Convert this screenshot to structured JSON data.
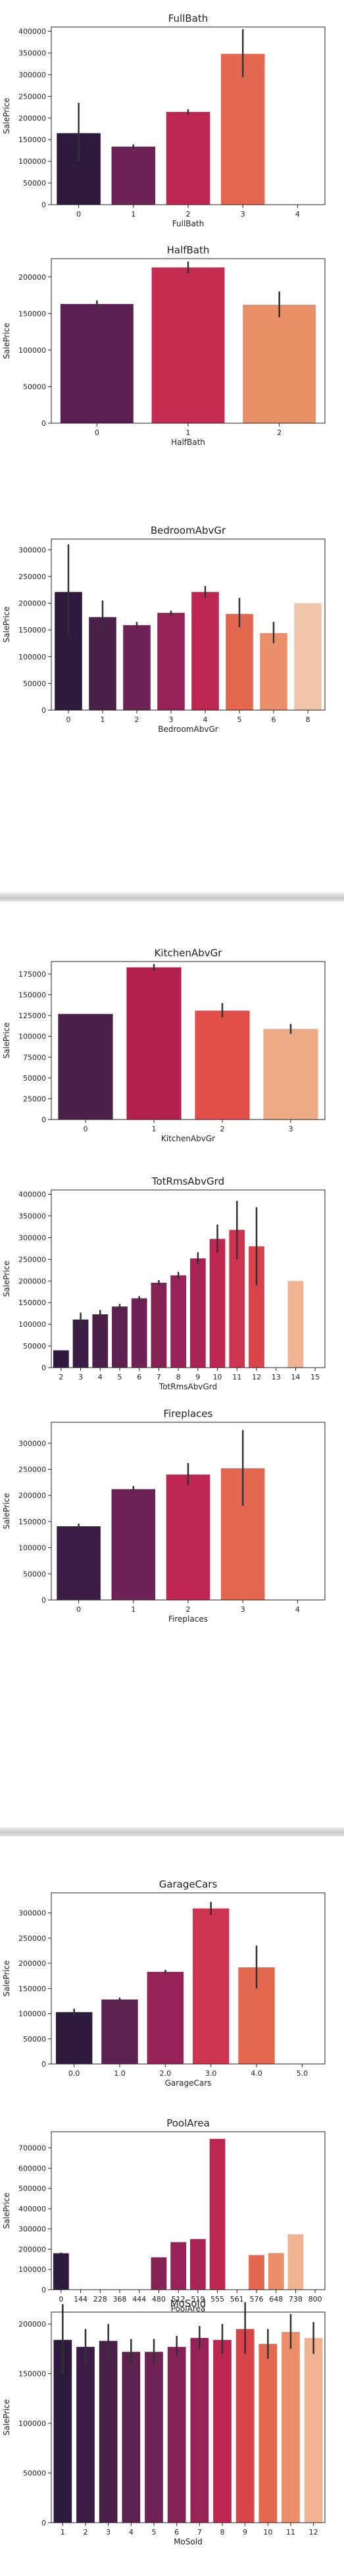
{
  "palette": [
    "#2d1a3d",
    "#4a1f48",
    "#6e2256",
    "#962257",
    "#bd2650",
    "#d9434a",
    "#e4684f",
    "#ea8f6a",
    "#efb392",
    "#f0c6ab"
  ],
  "errorbar_color": "#333333",
  "chart_data": [
    {
      "type": "bar",
      "title": "FullBath",
      "xlabel": "FullBath",
      "ylabel": "SalePrice",
      "categories": [
        "0",
        "1",
        "2",
        "3",
        "4"
      ],
      "values": [
        165000,
        134000,
        214000,
        348000,
        0
      ],
      "ci": [
        [
          100000,
          235000
        ],
        [
          129000,
          139000
        ],
        [
          208000,
          220000
        ],
        [
          294000,
          405000
        ],
        null
      ],
      "ylim": [
        0,
        410000
      ],
      "yticks": [
        0,
        50000,
        100000,
        150000,
        200000,
        250000,
        300000,
        350000,
        400000
      ],
      "colors": [
        "#2d1a3d",
        "#6e2256",
        "#bd2650",
        "#e4684f",
        "#efb392"
      ]
    },
    {
      "type": "bar",
      "title": "HalfBath",
      "xlabel": "HalfBath",
      "ylabel": "SalePrice",
      "categories": [
        "0",
        "1",
        "2"
      ],
      "values": [
        163000,
        213000,
        162000
      ],
      "ci": [
        [
          158000,
          168000
        ],
        [
          205000,
          221000
        ],
        [
          145000,
          180000
        ]
      ],
      "ylim": [
        0,
        225000
      ],
      "yticks": [
        0,
        50000,
        100000,
        150000,
        200000
      ],
      "colors": [
        "#5a1f52",
        "#c62b52",
        "#e89068"
      ]
    },
    {
      "type": "bar",
      "title": "BedroomAbvGr",
      "xlabel": "BedroomAbvGr",
      "ylabel": "SalePrice",
      "categories": [
        "0",
        "1",
        "2",
        "3",
        "4",
        "5",
        "6",
        "8"
      ],
      "values": [
        221000,
        174000,
        159000,
        182000,
        221000,
        180000,
        144000,
        200000
      ],
      "ci": [
        [
          140000,
          310000
        ],
        [
          145000,
          205000
        ],
        [
          153000,
          165000
        ],
        [
          177000,
          186000
        ],
        [
          210000,
          232000
        ],
        [
          155000,
          210000
        ],
        [
          125000,
          165000
        ],
        null
      ],
      "ylim": [
        0,
        320000
      ],
      "yticks": [
        0,
        50000,
        100000,
        150000,
        200000,
        250000,
        300000
      ],
      "colors": [
        "#2d1a3d",
        "#4a1f48",
        "#6e2256",
        "#962257",
        "#bd2650",
        "#e4684f",
        "#ea8f6a",
        "#f0c6ab"
      ]
    },
    {
      "type": "bar",
      "title": "KitchenAbvGr",
      "xlabel": "KitchenAbvGr",
      "ylabel": "SalePrice",
      "categories": [
        "0",
        "1",
        "2",
        "3"
      ],
      "values": [
        127000,
        183000,
        131000,
        109000
      ],
      "ci": [
        null,
        [
          179000,
          187000
        ],
        [
          123000,
          140000
        ],
        [
          103000,
          115000
        ]
      ],
      "ylim": [
        0,
        190000
      ],
      "yticks": [
        0,
        25000,
        50000,
        75000,
        100000,
        125000,
        150000,
        175000
      ],
      "colors": [
        "#4a1f48",
        "#b3204e",
        "#e24e49",
        "#ecaa86"
      ]
    },
    {
      "type": "bar",
      "title": "TotRmsAbvGrd",
      "xlabel": "TotRmsAbvGrd",
      "ylabel": "SalePrice",
      "categories": [
        "2",
        "3",
        "4",
        "5",
        "6",
        "7",
        "8",
        "9",
        "10",
        "11",
        "12",
        "13",
        "14",
        "15"
      ],
      "values": [
        40000,
        111000,
        123000,
        141000,
        160000,
        196000,
        213000,
        252000,
        297000,
        318000,
        280000,
        0,
        200000,
        0
      ],
      "ci": [
        null,
        [
          95000,
          127000
        ],
        [
          113000,
          133000
        ],
        [
          135000,
          147000
        ],
        [
          155000,
          165000
        ],
        [
          190000,
          202000
        ],
        [
          205000,
          221000
        ],
        [
          238000,
          266000
        ],
        [
          265000,
          330000
        ],
        [
          250000,
          385000
        ],
        [
          190000,
          370000
        ],
        null,
        null,
        null
      ],
      "ylim": [
        0,
        410000
      ],
      "yticks": [
        0,
        50000,
        100000,
        150000,
        200000,
        250000,
        300000,
        350000,
        400000
      ],
      "colors": [
        "#2d1a3d",
        "#3a1c44",
        "#4a1f48",
        "#5d2150",
        "#6e2256",
        "#852255",
        "#962257",
        "#a92354",
        "#bd2650",
        "#cd3450",
        "#d9434a",
        "#e4684f",
        "#efb392",
        "#f0c6ab"
      ]
    },
    {
      "type": "bar",
      "title": "Fireplaces",
      "xlabel": "Fireplaces",
      "ylabel": "SalePrice",
      "categories": [
        "0",
        "1",
        "2",
        "3",
        "4"
      ],
      "values": [
        141000,
        212000,
        240000,
        252000,
        0
      ],
      "ci": [
        [
          136000,
          146000
        ],
        [
          206000,
          218000
        ],
        [
          220000,
          262000
        ],
        [
          180000,
          325000
        ],
        null
      ],
      "ylim": [
        0,
        340000
      ],
      "yticks": [
        0,
        50000,
        100000,
        150000,
        200000,
        250000,
        300000
      ],
      "colors": [
        "#3a1c44",
        "#6e2256",
        "#bd2650",
        "#e4684f",
        "#efb392"
      ]
    },
    {
      "type": "bar",
      "title": "GarageCars",
      "xlabel": "GarageCars",
      "ylabel": "SalePrice",
      "categories": [
        "0.0",
        "1.0",
        "2.0",
        "3.0",
        "4.0",
        "5.0"
      ],
      "values": [
        103000,
        128000,
        183000,
        309000,
        192000,
        0
      ],
      "ci": [
        [
          96000,
          110000
        ],
        [
          124000,
          132000
        ],
        [
          179000,
          187000
        ],
        [
          296000,
          322000
        ],
        [
          150000,
          235000
        ],
        null
      ],
      "ylim": [
        0,
        340000
      ],
      "yticks": [
        0,
        50000,
        100000,
        150000,
        200000,
        250000,
        300000
      ],
      "colors": [
        "#2d1a3d",
        "#5d2150",
        "#962257",
        "#cd3450",
        "#e4684f",
        "#efb392"
      ]
    },
    {
      "type": "bar",
      "title": "PoolArea",
      "xlabel": "PoolArea",
      "ylabel": "SalePrice",
      "categories": [
        "0",
        "144",
        "228",
        "368",
        "444",
        "480",
        "512",
        "519",
        "555",
        "561",
        "576",
        "648",
        "738",
        "800"
      ],
      "values": [
        180000,
        0,
        0,
        0,
        0,
        160000,
        235000,
        250000,
        745000,
        0,
        171000,
        181000,
        274000,
        0
      ],
      "ci": [
        [
          176000,
          184000
        ],
        null,
        null,
        null,
        null,
        null,
        null,
        null,
        null,
        null,
        null,
        null,
        null,
        null
      ],
      "ylim": [
        0,
        780000
      ],
      "yticks": [
        0,
        100000,
        200000,
        300000,
        400000,
        500000,
        600000,
        700000
      ],
      "colors": [
        "#2d1a3d",
        "#3a1c44",
        "#4a1f48",
        "#5d2150",
        "#6e2256",
        "#852255",
        "#962257",
        "#a92354",
        "#bd2650",
        "#d9434a",
        "#e4684f",
        "#ea8f6a",
        "#efb392",
        "#f0c6ab"
      ]
    },
    {
      "type": "bar",
      "title": "MoSold",
      "xlabel": "MoSold",
      "ylabel": "SalePrice",
      "categories": [
        "1",
        "2",
        "3",
        "4",
        "5",
        "6",
        "7",
        "8",
        "9",
        "10",
        "11",
        "12"
      ],
      "values": [
        184000,
        177000,
        183000,
        172000,
        172000,
        177000,
        186000,
        184000,
        195000,
        180000,
        192000,
        186000
      ],
      "ci": [
        [
          150000,
          220000
        ],
        [
          160000,
          195000
        ],
        [
          165000,
          200000
        ],
        [
          160000,
          185000
        ],
        [
          160000,
          185000
        ],
        [
          167000,
          188000
        ],
        [
          175000,
          198000
        ],
        [
          170000,
          200000
        ],
        [
          170000,
          222000
        ],
        [
          165000,
          195000
        ],
        [
          175000,
          210000
        ],
        [
          170000,
          202000
        ]
      ],
      "ylim": [
        0,
        212000
      ],
      "yticks": [
        0,
        50000,
        100000,
        150000,
        200000
      ],
      "colors": [
        "#2d1a3d",
        "#3a1c44",
        "#4a1f48",
        "#5d2150",
        "#6e2256",
        "#852255",
        "#962257",
        "#bd2650",
        "#d9434a",
        "#e4684f",
        "#ea8f6a",
        "#efb392"
      ]
    }
  ]
}
